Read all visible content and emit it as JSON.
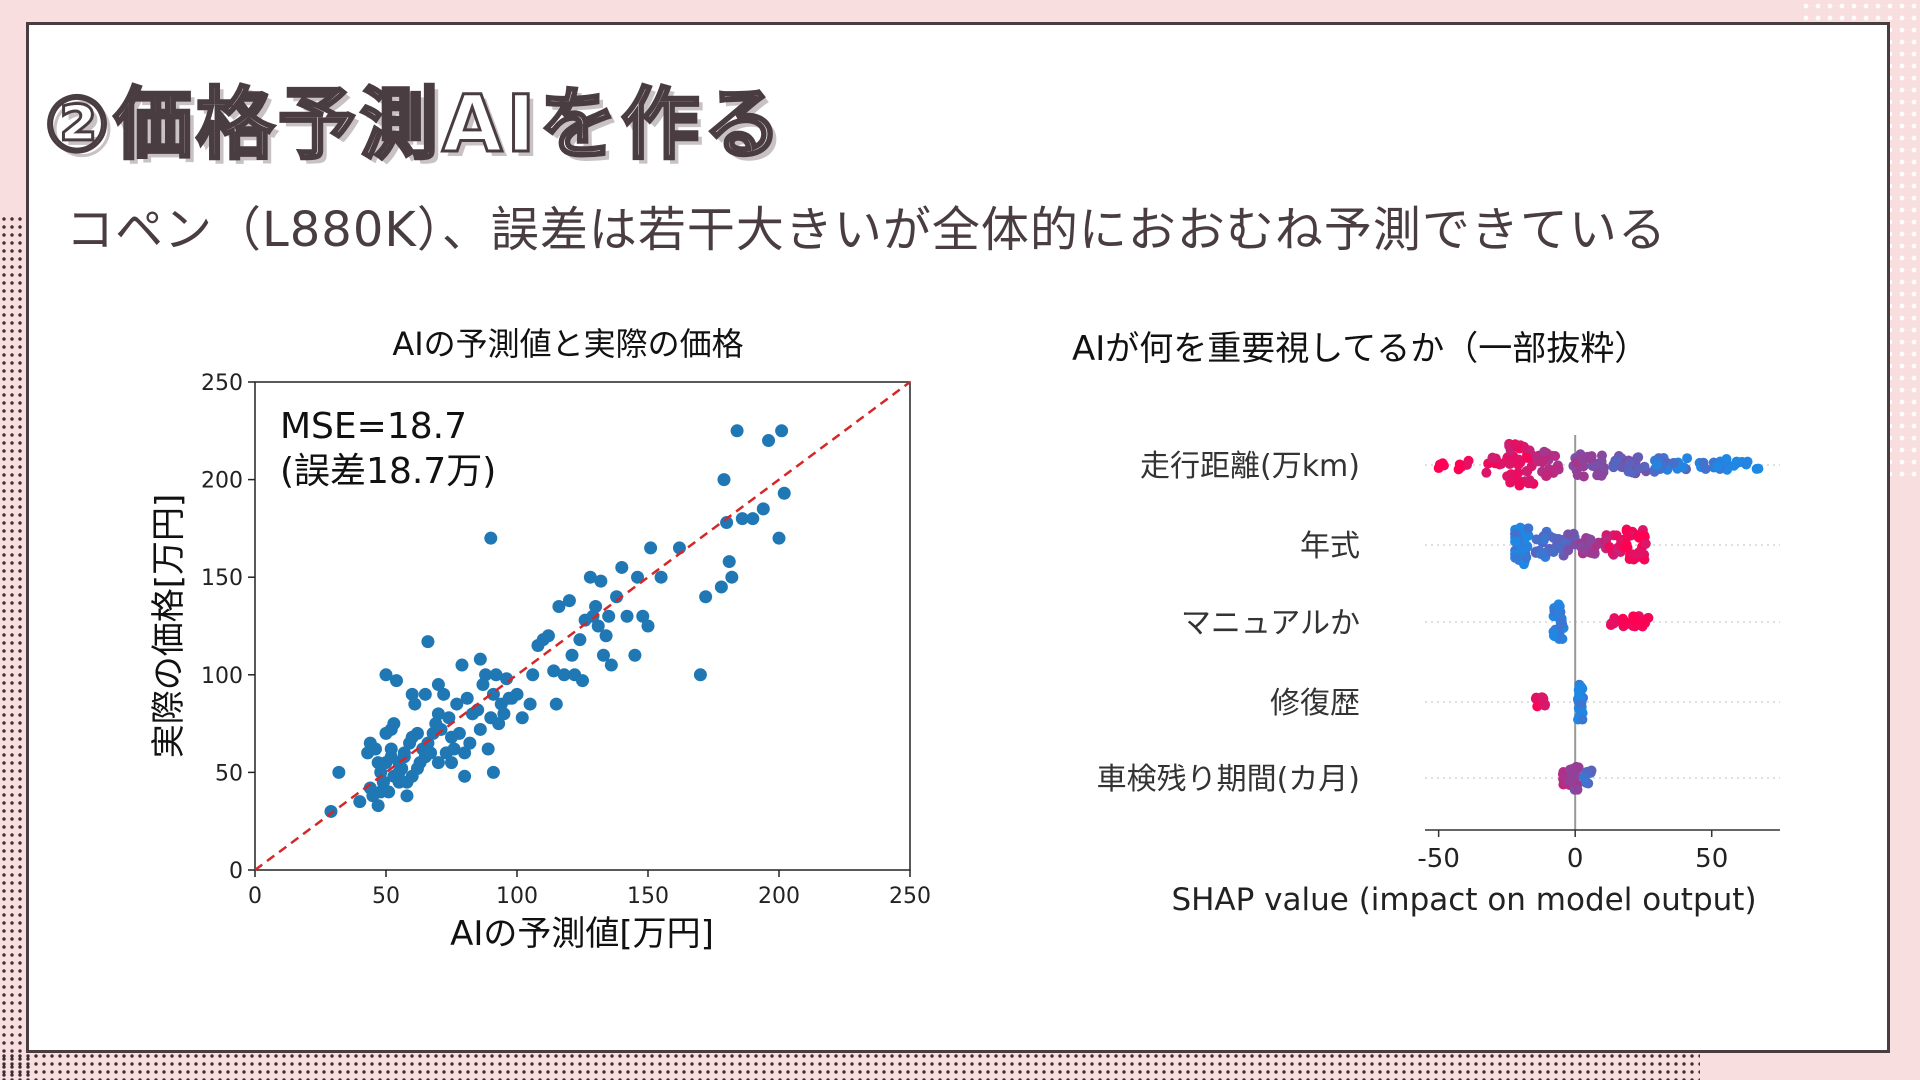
{
  "page": {
    "title": "②価格予測AIを作る",
    "subtitle": "コペン（L880K）、誤差は若干大きいが全体的におおむね予測できている"
  },
  "chart_data": [
    {
      "type": "scatter",
      "title": "AIの予測値と実際の価格",
      "xlabel": "AIの予測値[万円]",
      "ylabel": "実際の価格[万円]",
      "xlim": [
        0,
        250
      ],
      "ylim": [
        0,
        250
      ],
      "xticks": [
        "0",
        "50",
        "100",
        "150",
        "200",
        "250"
      ],
      "yticks": [
        "0",
        "50",
        "100",
        "150",
        "200",
        "250"
      ],
      "annotation_line1": "MSE=18.7",
      "annotation_line2": "(誤差18.7万)",
      "point_color": "#1f77b4",
      "reference_line_color": "#d62728",
      "reference_line": "y = x (dashed)",
      "x": [
        29,
        32,
        40,
        43,
        44,
        45,
        46,
        47,
        48,
        49,
        50,
        50,
        51,
        52,
        52,
        53,
        54,
        55,
        55,
        56,
        57,
        58,
        59,
        60,
        60,
        61,
        62,
        63,
        64,
        65,
        66,
        66,
        67,
        68,
        69,
        70,
        70,
        71,
        72,
        73,
        74,
        75,
        76,
        77,
        78,
        79,
        80,
        80,
        81,
        82,
        83,
        85,
        86,
        86,
        87,
        88,
        89,
        90,
        90,
        91,
        92,
        93,
        94,
        95,
        96,
        97,
        98,
        100,
        102,
        105,
        106,
        108,
        110,
        112,
        114,
        115,
        116,
        118,
        120,
        121,
        122,
        124,
        125,
        126,
        128,
        129,
        130,
        131,
        132,
        133,
        134,
        135,
        136,
        138,
        140,
        142,
        145,
        146,
        148,
        150,
        151,
        155,
        162,
        170,
        172,
        178,
        179,
        180,
        181,
        182,
        184,
        186,
        190,
        194,
        196,
        200,
        201,
        202,
        91,
        50,
        65,
        48,
        55,
        60,
        52,
        58,
        44,
        70,
        75,
        62,
        57,
        49,
        47,
        53
      ],
      "y": [
        30,
        50,
        35,
        60,
        42,
        38,
        62,
        33,
        50,
        45,
        55,
        100,
        40,
        58,
        62,
        48,
        97,
        45,
        55,
        52,
        60,
        38,
        65,
        90,
        48,
        85,
        70,
        55,
        62,
        58,
        117,
        65,
        60,
        70,
        75,
        80,
        55,
        72,
        90,
        60,
        78,
        55,
        62,
        85,
        70,
        105,
        60,
        48,
        88,
        65,
        80,
        82,
        72,
        108,
        95,
        100,
        62,
        78,
        170,
        90,
        100,
        75,
        85,
        80,
        98,
        88,
        88,
        90,
        78,
        85,
        100,
        115,
        118,
        120,
        102,
        85,
        135,
        100,
        138,
        110,
        100,
        118,
        97,
        128,
        150,
        130,
        135,
        125,
        148,
        110,
        120,
        130,
        105,
        140,
        155,
        130,
        110,
        150,
        130,
        125,
        165,
        150,
        165,
        100,
        140,
        145,
        200,
        178,
        158,
        150,
        225,
        180,
        180,
        185,
        220,
        170,
        225,
        193,
        50,
        70,
        90,
        40,
        50,
        68,
        72,
        45,
        65,
        95,
        68,
        52,
        58,
        45,
        55,
        75
      ]
    },
    {
      "type": "scatter",
      "subtype": "shap-beeswarm",
      "title": "AIが何を重要視してるか（一部抜粋）",
      "xlabel": "SHAP value (impact on model output)",
      "xlim": [
        -55,
        75
      ],
      "xticks": [
        "-50",
        "0",
        "50"
      ],
      "features": [
        "走行距離(万km)",
        "年式",
        "マニュアルか",
        "修復歴",
        "車検残り期間(カ月)"
      ],
      "color_low": "#1e88e5",
      "color_high": "#ff0052",
      "series": [
        {
          "feature": "走行距離(万km)",
          "shap_range": [
            -50,
            72
          ]
        },
        {
          "feature": "年式",
          "shap_range": [
            -22,
            28
          ]
        },
        {
          "feature": "マニュアルか",
          "shap_range": [
            -8,
            28
          ]
        },
        {
          "feature": "修復歴",
          "shap_range": [
            -15,
            3
          ]
        },
        {
          "feature": "車検残り期間(カ月)",
          "shap_range": [
            -6,
            6
          ]
        }
      ]
    }
  ]
}
